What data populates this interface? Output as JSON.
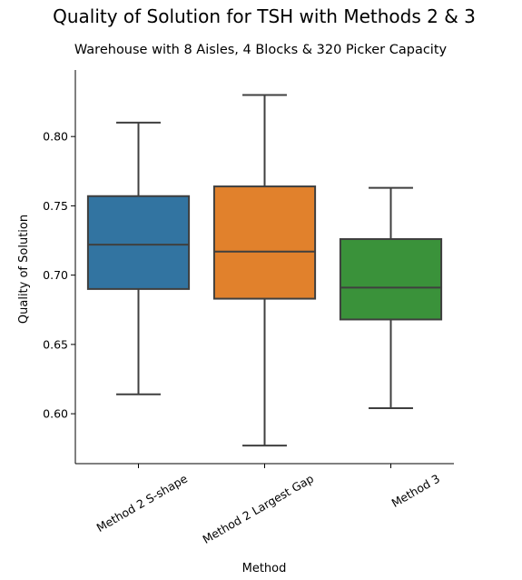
{
  "chart_data": {
    "type": "box",
    "title": "Quality of Solution for TSH with Methods 2 & 3",
    "subtitle": "Warehouse with 8 Aisles, 4 Blocks & 320 Picker Capacity",
    "xlabel": "Method",
    "ylabel": "Quality of Solution",
    "categories": [
      "Method 2 S-shape",
      "Method 2 Largest Gap",
      "Method 3"
    ],
    "yticks": [
      "0.60",
      "0.65",
      "0.70",
      "0.75",
      "0.80"
    ],
    "ylim": [
      0.564,
      0.848
    ],
    "grid": false,
    "boxes": [
      {
        "category": "Method 2 S-shape",
        "whisker_low": 0.614,
        "q1": 0.69,
        "median": 0.722,
        "q3": 0.757,
        "whisker_high": 0.81,
        "color": "#3274a1"
      },
      {
        "category": "Method 2 Largest Gap",
        "whisker_low": 0.577,
        "q1": 0.683,
        "median": 0.717,
        "q3": 0.764,
        "whisker_high": 0.83,
        "color": "#e1812c"
      },
      {
        "category": "Method 3",
        "whisker_low": 0.604,
        "q1": 0.668,
        "median": 0.691,
        "q3": 0.726,
        "whisker_high": 0.763,
        "color": "#3a923a"
      }
    ]
  }
}
